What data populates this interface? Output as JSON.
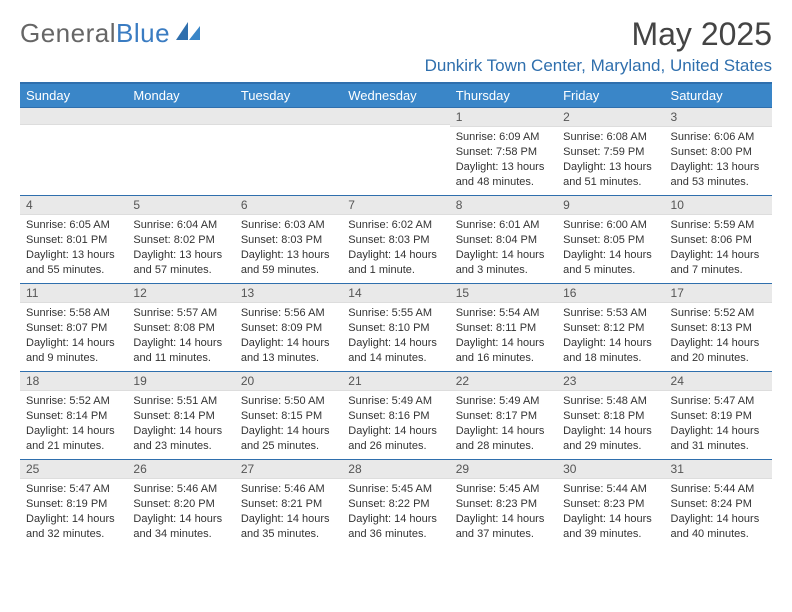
{
  "brand": {
    "part1": "General",
    "part2": "Blue"
  },
  "title": "May 2025",
  "location": "Dunkirk Town Center, Maryland, United States",
  "colors": {
    "header_bg": "#3a86c8",
    "accent": "#2f6fad",
    "daynum_bg": "#e9e9e9",
    "page_bg": "#ffffff",
    "text": "#333333"
  },
  "day_headers": [
    "Sunday",
    "Monday",
    "Tuesday",
    "Wednesday",
    "Thursday",
    "Friday",
    "Saturday"
  ],
  "weeks": [
    [
      {
        "n": "",
        "sr": "",
        "ss": "",
        "dl": ""
      },
      {
        "n": "",
        "sr": "",
        "ss": "",
        "dl": ""
      },
      {
        "n": "",
        "sr": "",
        "ss": "",
        "dl": ""
      },
      {
        "n": "",
        "sr": "",
        "ss": "",
        "dl": ""
      },
      {
        "n": "1",
        "sr": "Sunrise: 6:09 AM",
        "ss": "Sunset: 7:58 PM",
        "dl": "Daylight: 13 hours and 48 minutes."
      },
      {
        "n": "2",
        "sr": "Sunrise: 6:08 AM",
        "ss": "Sunset: 7:59 PM",
        "dl": "Daylight: 13 hours and 51 minutes."
      },
      {
        "n": "3",
        "sr": "Sunrise: 6:06 AM",
        "ss": "Sunset: 8:00 PM",
        "dl": "Daylight: 13 hours and 53 minutes."
      }
    ],
    [
      {
        "n": "4",
        "sr": "Sunrise: 6:05 AM",
        "ss": "Sunset: 8:01 PM",
        "dl": "Daylight: 13 hours and 55 minutes."
      },
      {
        "n": "5",
        "sr": "Sunrise: 6:04 AM",
        "ss": "Sunset: 8:02 PM",
        "dl": "Daylight: 13 hours and 57 minutes."
      },
      {
        "n": "6",
        "sr": "Sunrise: 6:03 AM",
        "ss": "Sunset: 8:03 PM",
        "dl": "Daylight: 13 hours and 59 minutes."
      },
      {
        "n": "7",
        "sr": "Sunrise: 6:02 AM",
        "ss": "Sunset: 8:03 PM",
        "dl": "Daylight: 14 hours and 1 minute."
      },
      {
        "n": "8",
        "sr": "Sunrise: 6:01 AM",
        "ss": "Sunset: 8:04 PM",
        "dl": "Daylight: 14 hours and 3 minutes."
      },
      {
        "n": "9",
        "sr": "Sunrise: 6:00 AM",
        "ss": "Sunset: 8:05 PM",
        "dl": "Daylight: 14 hours and 5 minutes."
      },
      {
        "n": "10",
        "sr": "Sunrise: 5:59 AM",
        "ss": "Sunset: 8:06 PM",
        "dl": "Daylight: 14 hours and 7 minutes."
      }
    ],
    [
      {
        "n": "11",
        "sr": "Sunrise: 5:58 AM",
        "ss": "Sunset: 8:07 PM",
        "dl": "Daylight: 14 hours and 9 minutes."
      },
      {
        "n": "12",
        "sr": "Sunrise: 5:57 AM",
        "ss": "Sunset: 8:08 PM",
        "dl": "Daylight: 14 hours and 11 minutes."
      },
      {
        "n": "13",
        "sr": "Sunrise: 5:56 AM",
        "ss": "Sunset: 8:09 PM",
        "dl": "Daylight: 14 hours and 13 minutes."
      },
      {
        "n": "14",
        "sr": "Sunrise: 5:55 AM",
        "ss": "Sunset: 8:10 PM",
        "dl": "Daylight: 14 hours and 14 minutes."
      },
      {
        "n": "15",
        "sr": "Sunrise: 5:54 AM",
        "ss": "Sunset: 8:11 PM",
        "dl": "Daylight: 14 hours and 16 minutes."
      },
      {
        "n": "16",
        "sr": "Sunrise: 5:53 AM",
        "ss": "Sunset: 8:12 PM",
        "dl": "Daylight: 14 hours and 18 minutes."
      },
      {
        "n": "17",
        "sr": "Sunrise: 5:52 AM",
        "ss": "Sunset: 8:13 PM",
        "dl": "Daylight: 14 hours and 20 minutes."
      }
    ],
    [
      {
        "n": "18",
        "sr": "Sunrise: 5:52 AM",
        "ss": "Sunset: 8:14 PM",
        "dl": "Daylight: 14 hours and 21 minutes."
      },
      {
        "n": "19",
        "sr": "Sunrise: 5:51 AM",
        "ss": "Sunset: 8:14 PM",
        "dl": "Daylight: 14 hours and 23 minutes."
      },
      {
        "n": "20",
        "sr": "Sunrise: 5:50 AM",
        "ss": "Sunset: 8:15 PM",
        "dl": "Daylight: 14 hours and 25 minutes."
      },
      {
        "n": "21",
        "sr": "Sunrise: 5:49 AM",
        "ss": "Sunset: 8:16 PM",
        "dl": "Daylight: 14 hours and 26 minutes."
      },
      {
        "n": "22",
        "sr": "Sunrise: 5:49 AM",
        "ss": "Sunset: 8:17 PM",
        "dl": "Daylight: 14 hours and 28 minutes."
      },
      {
        "n": "23",
        "sr": "Sunrise: 5:48 AM",
        "ss": "Sunset: 8:18 PM",
        "dl": "Daylight: 14 hours and 29 minutes."
      },
      {
        "n": "24",
        "sr": "Sunrise: 5:47 AM",
        "ss": "Sunset: 8:19 PM",
        "dl": "Daylight: 14 hours and 31 minutes."
      }
    ],
    [
      {
        "n": "25",
        "sr": "Sunrise: 5:47 AM",
        "ss": "Sunset: 8:19 PM",
        "dl": "Daylight: 14 hours and 32 minutes."
      },
      {
        "n": "26",
        "sr": "Sunrise: 5:46 AM",
        "ss": "Sunset: 8:20 PM",
        "dl": "Daylight: 14 hours and 34 minutes."
      },
      {
        "n": "27",
        "sr": "Sunrise: 5:46 AM",
        "ss": "Sunset: 8:21 PM",
        "dl": "Daylight: 14 hours and 35 minutes."
      },
      {
        "n": "28",
        "sr": "Sunrise: 5:45 AM",
        "ss": "Sunset: 8:22 PM",
        "dl": "Daylight: 14 hours and 36 minutes."
      },
      {
        "n": "29",
        "sr": "Sunrise: 5:45 AM",
        "ss": "Sunset: 8:23 PM",
        "dl": "Daylight: 14 hours and 37 minutes."
      },
      {
        "n": "30",
        "sr": "Sunrise: 5:44 AM",
        "ss": "Sunset: 8:23 PM",
        "dl": "Daylight: 14 hours and 39 minutes."
      },
      {
        "n": "31",
        "sr": "Sunrise: 5:44 AM",
        "ss": "Sunset: 8:24 PM",
        "dl": "Daylight: 14 hours and 40 minutes."
      }
    ]
  ]
}
